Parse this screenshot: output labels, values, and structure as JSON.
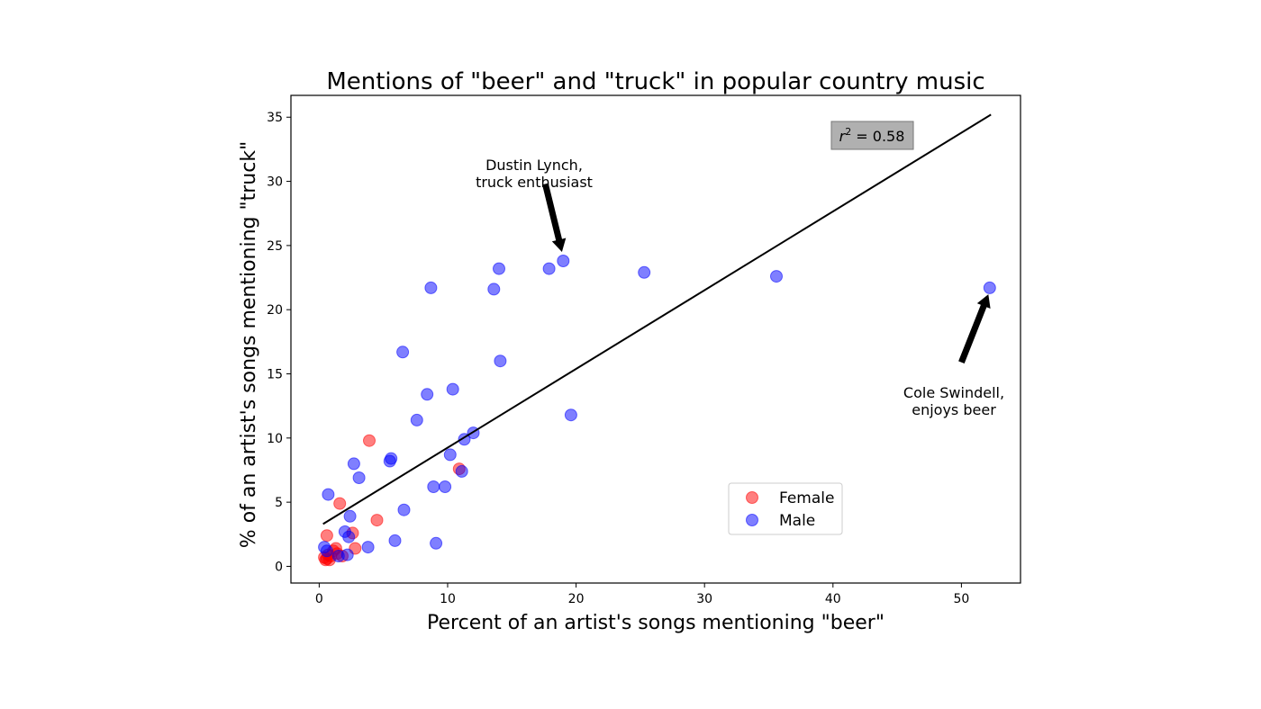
{
  "chart_data": {
    "type": "scatter",
    "title": "Mentions of \"beer\" and \"truck\" in popular country music",
    "xlabel": "Percent of an artist's songs mentioning \"beer\"",
    "ylabel": "% of an artist's songs mentioning \"truck\"",
    "xlim": [
      -2.2,
      54.6
    ],
    "ylim": [
      -1.3,
      36.7
    ],
    "xticks": [
      0,
      10,
      20,
      30,
      40,
      50
    ],
    "yticks": [
      0,
      5,
      10,
      15,
      20,
      25,
      30,
      35
    ],
    "grid": false,
    "legend_position": "lower-right",
    "series": [
      {
        "name": "Female",
        "color": "#ff0000",
        "points": [
          {
            "x": 0.4,
            "y": 0.7
          },
          {
            "x": 0.5,
            "y": 0.5
          },
          {
            "x": 0.6,
            "y": 0.6
          },
          {
            "x": 0.7,
            "y": 0.9
          },
          {
            "x": 0.8,
            "y": 0.5
          },
          {
            "x": 0.9,
            "y": 0.8
          },
          {
            "x": 1.1,
            "y": 1.2
          },
          {
            "x": 1.3,
            "y": 1.4
          },
          {
            "x": 1.4,
            "y": 1.0
          },
          {
            "x": 0.6,
            "y": 2.4
          },
          {
            "x": 1.6,
            "y": 4.9
          },
          {
            "x": 1.8,
            "y": 0.8
          },
          {
            "x": 2.6,
            "y": 2.6
          },
          {
            "x": 2.8,
            "y": 1.4
          },
          {
            "x": 3.9,
            "y": 9.8
          },
          {
            "x": 4.5,
            "y": 3.6
          },
          {
            "x": 10.9,
            "y": 7.6
          }
        ]
      },
      {
        "name": "Male",
        "color": "#0000ff",
        "points": [
          {
            "x": 0.4,
            "y": 1.5
          },
          {
            "x": 0.6,
            "y": 1.2
          },
          {
            "x": 0.7,
            "y": 5.6
          },
          {
            "x": 1.5,
            "y": 0.8
          },
          {
            "x": 2.0,
            "y": 2.7
          },
          {
            "x": 2.2,
            "y": 0.9
          },
          {
            "x": 2.3,
            "y": 2.3
          },
          {
            "x": 2.4,
            "y": 3.9
          },
          {
            "x": 2.7,
            "y": 8.0
          },
          {
            "x": 3.1,
            "y": 6.9
          },
          {
            "x": 3.8,
            "y": 1.5
          },
          {
            "x": 5.5,
            "y": 8.2
          },
          {
            "x": 5.6,
            "y": 8.4
          },
          {
            "x": 5.9,
            "y": 2.0
          },
          {
            "x": 6.5,
            "y": 16.7
          },
          {
            "x": 6.6,
            "y": 4.4
          },
          {
            "x": 7.6,
            "y": 11.4
          },
          {
            "x": 8.4,
            "y": 13.4
          },
          {
            "x": 8.7,
            "y": 21.7
          },
          {
            "x": 8.9,
            "y": 6.2
          },
          {
            "x": 9.1,
            "y": 1.8
          },
          {
            "x": 9.8,
            "y": 6.2
          },
          {
            "x": 10.2,
            "y": 8.7
          },
          {
            "x": 10.4,
            "y": 13.8
          },
          {
            "x": 11.1,
            "y": 7.4
          },
          {
            "x": 11.3,
            "y": 9.9
          },
          {
            "x": 12.0,
            "y": 10.4
          },
          {
            "x": 13.6,
            "y": 21.6
          },
          {
            "x": 14.0,
            "y": 23.2
          },
          {
            "x": 14.1,
            "y": 16.0
          },
          {
            "x": 17.9,
            "y": 23.2
          },
          {
            "x": 19.0,
            "y": 23.8
          },
          {
            "x": 19.6,
            "y": 11.8
          },
          {
            "x": 25.3,
            "y": 22.9
          },
          {
            "x": 35.6,
            "y": 22.6
          },
          {
            "x": 52.2,
            "y": 21.7
          }
        ]
      }
    ],
    "fit_line": {
      "x": [
        0.3,
        52.3
      ],
      "y": [
        3.3,
        35.2
      ],
      "color": "#000000"
    },
    "r_squared_label": {
      "var": "r",
      "exp": "2",
      "rest": " = 0.58"
    },
    "annotations": [
      {
        "lines": [
          "Dustin Lynch,",
          "truck enthusiast"
        ],
        "arrow_from": {
          "x": 17.6,
          "y": 29.8
        },
        "arrow_to": {
          "x": 18.9,
          "y": 24.5
        }
      },
      {
        "lines": [
          "Cole Swindell,",
          "enjoys beer"
        ],
        "arrow_from": {
          "x": 50.0,
          "y": 15.9
        },
        "arrow_to": {
          "x": 52.1,
          "y": 21.2
        }
      }
    ]
  }
}
